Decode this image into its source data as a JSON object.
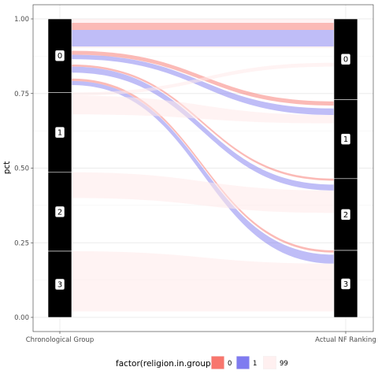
{
  "chart_data": {
    "type": "alluvial",
    "x_axis": [
      "Chronological Group",
      "Actual NF Ranking"
    ],
    "ylabel": "pct",
    "ylim": [
      0,
      1
    ],
    "y_ticks": [
      0.0,
      0.25,
      0.5,
      0.75,
      1.0
    ],
    "y_tick_labels": [
      "0.00",
      "0.25",
      "0.50",
      "0.75",
      "1.00"
    ],
    "axes": [
      {
        "name": "Chronological Group",
        "strata": [
          {
            "label": "0",
            "ymin": 0.7536,
            "ymax": 1.0
          },
          {
            "label": "1",
            "ymin": 0.486,
            "ymax": 0.7536
          },
          {
            "label": "2",
            "ymin": 0.2217,
            "ymax": 0.486
          },
          {
            "label": "3",
            "ymin": 0.0,
            "ymax": 0.2217
          }
        ]
      },
      {
        "name": "Actual NF Ranking",
        "strata": [
          {
            "label": "0",
            "ymin": 0.7298,
            "ymax": 1.0
          },
          {
            "label": "1",
            "ymin": 0.4648,
            "ymax": 0.7298
          },
          {
            "label": "2",
            "ymin": 0.2243,
            "ymax": 0.4648
          },
          {
            "label": "3",
            "ymin": 0.0,
            "ymax": 0.2243
          }
        ]
      }
    ],
    "flows": [
      {
        "from": "0",
        "to": "0",
        "group": "99",
        "y0": [
          0.9868,
          1.0
        ],
        "y1": [
          0.9868,
          1.0
        ]
      },
      {
        "from": "0",
        "to": "0",
        "group": "0",
        "y0": [
          0.9631,
          0.9868
        ],
        "y1": [
          0.9631,
          0.9868
        ]
      },
      {
        "from": "0",
        "to": "0",
        "group": "1",
        "y0": [
          0.9077,
          0.9631
        ],
        "y1": [
          0.9077,
          0.9631
        ]
      },
      {
        "from": "0",
        "to": "0",
        "group": "99",
        "y0": [
          0.9023,
          0.9077
        ],
        "y1": [
          0.9023,
          0.9077
        ]
      },
      {
        "from": "0",
        "to": "1",
        "group": "0",
        "y0": [
          0.88,
          0.893
        ],
        "y1": [
          0.7098,
          0.7236
        ]
      },
      {
        "from": "0",
        "to": "1",
        "group": "1",
        "y0": [
          0.8652,
          0.88
        ],
        "y1": [
          0.678,
          0.7
        ]
      },
      {
        "from": "0",
        "to": "2",
        "group": "0",
        "y0": [
          0.84,
          0.847
        ],
        "y1": [
          0.458,
          0.465
        ]
      },
      {
        "from": "0",
        "to": "2",
        "group": "1",
        "y0": [
          0.82,
          0.84
        ],
        "y1": [
          0.425,
          0.445
        ]
      },
      {
        "from": "0",
        "to": "3",
        "group": "0",
        "y0": [
          0.792,
          0.8
        ],
        "y1": [
          0.217,
          0.2245
        ]
      },
      {
        "from": "0",
        "to": "3",
        "group": "1",
        "y0": [
          0.7785,
          0.792
        ],
        "y1": [
          0.18,
          0.21
        ]
      },
      {
        "from": "1",
        "to": "0",
        "group": "99",
        "y0": [
          0.743,
          0.7536
        ],
        "y1": [
          0.84,
          0.853
        ]
      },
      {
        "from": "1",
        "to": "1",
        "group": "99",
        "y0": [
          0.68,
          0.743
        ],
        "y1": [
          0.65,
          0.678
        ]
      },
      {
        "from": "2",
        "to": "2",
        "group": "99",
        "y0": [
          0.4,
          0.486
        ],
        "y1": [
          0.35,
          0.425
        ]
      },
      {
        "from": "3",
        "to": "3",
        "group": "99",
        "y0": [
          0.02,
          0.2217
        ],
        "y1": [
          0.02,
          0.18
        ]
      }
    ],
    "legend": {
      "title": "factor(religion.in.group)",
      "position": "bottom",
      "entries": [
        {
          "label": "0",
          "color": "#F8766D"
        },
        {
          "label": "1",
          "color": "#7F7BF0"
        },
        {
          "label": "99",
          "color": "#FFF0F0"
        }
      ]
    },
    "colors": {
      "0": "#F8766D",
      "1": "#7F7BF0",
      "99": "#FFEAEA"
    },
    "grid": true,
    "theme": "bw"
  }
}
